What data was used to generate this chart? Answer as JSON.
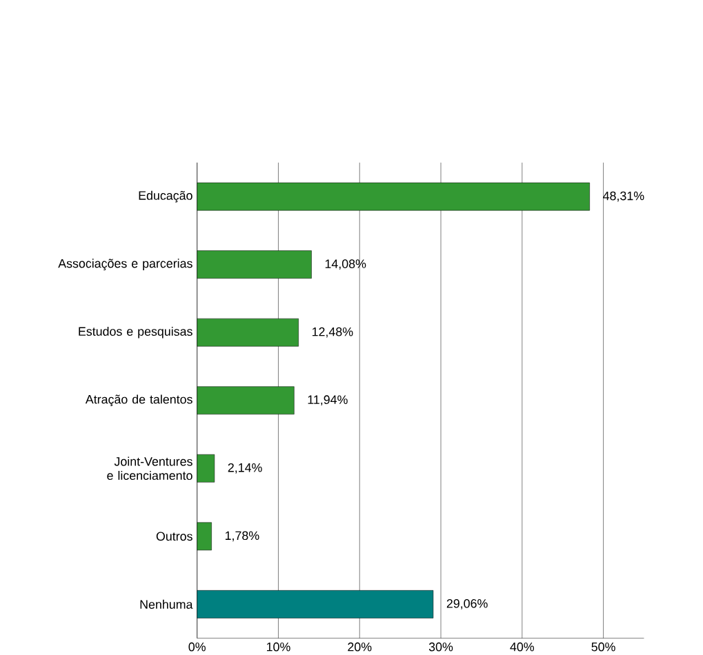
{
  "chart_data": {
    "type": "bar",
    "orientation": "horizontal",
    "categories": [
      "Educação",
      "Associações e parcerias",
      "Estudos e pesquisas",
      "Atração de talentos",
      "Joint-Ventures e licenciamento",
      "Outros",
      "Nenhuma"
    ],
    "values": [
      48.31,
      14.08,
      12.48,
      11.94,
      2.14,
      1.78,
      29.06
    ],
    "colors": [
      "#339933",
      "#339933",
      "#339933",
      "#339933",
      "#339933",
      "#339933",
      "#008080"
    ],
    "value_labels": [
      "48,31%",
      "14,08%",
      "12,48%",
      "11,94%",
      "2,14%",
      "1,78%",
      "29,06%"
    ],
    "xlim": [
      0,
      55
    ],
    "xticks": [
      {
        "value": 0,
        "label": "0%"
      },
      {
        "value": 10,
        "label": "10%"
      },
      {
        "value": 20,
        "label": "20%"
      },
      {
        "value": 30,
        "label": "30%"
      },
      {
        "value": 40,
        "label": "40%"
      },
      {
        "value": 50,
        "label": "50%"
      }
    ],
    "grid": "x"
  }
}
